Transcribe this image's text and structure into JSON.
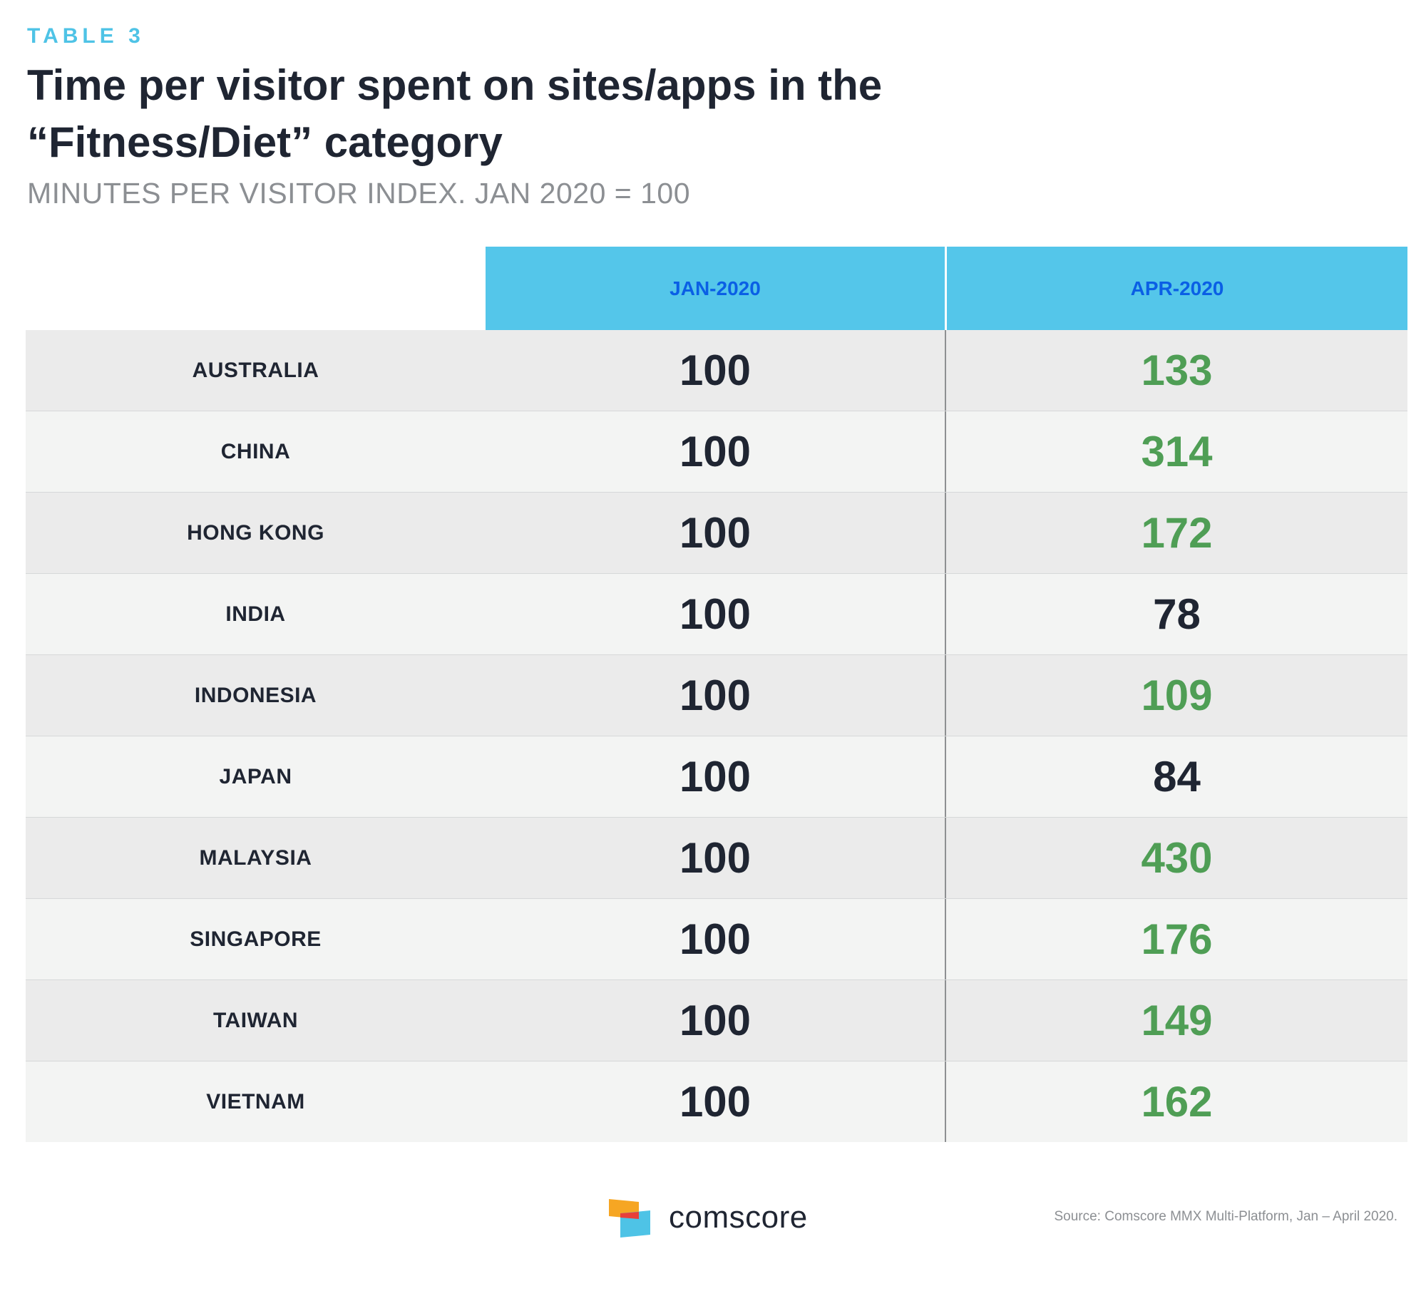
{
  "kicker": "TABLE 3",
  "title": "Time per visitor spent on sites/apps in the “Fitness/Diet” category",
  "subtitle": "MINUTES PER VISITOR INDEX. JAN 2020 = 100",
  "columns": [
    "JAN-2020",
    "APR-2020"
  ],
  "colors": {
    "header_bg": "#54c6ea",
    "header_text": "#0a5fe5",
    "increase": "#4f9e55",
    "decrease": "#1f2532",
    "kicker": "#4ec3e6"
  },
  "chart_data": {
    "type": "table",
    "title": "Time per visitor spent on sites/apps in the “Fitness/Diet” category",
    "subtitle": "MINUTES PER VISITOR INDEX. JAN 2020 = 100",
    "columns": [
      "JAN-2020",
      "APR-2020"
    ],
    "rows": [
      {
        "country": "AUSTRALIA",
        "jan": 100,
        "apr": 133
      },
      {
        "country": "CHINA",
        "jan": 100,
        "apr": 314
      },
      {
        "country": "HONG KONG",
        "jan": 100,
        "apr": 172
      },
      {
        "country": "INDIA",
        "jan": 100,
        "apr": 78
      },
      {
        "country": "INDONESIA",
        "jan": 100,
        "apr": 109
      },
      {
        "country": "JAPAN",
        "jan": 100,
        "apr": 84
      },
      {
        "country": "MALAYSIA",
        "jan": 100,
        "apr": 430
      },
      {
        "country": "SINGAPORE",
        "jan": 100,
        "apr": 176
      },
      {
        "country": "TAIWAN",
        "jan": 100,
        "apr": 149
      },
      {
        "country": "VIETNAM",
        "jan": 100,
        "apr": 162
      }
    ]
  },
  "logo": {
    "name": "comscore",
    "icon": "comscore-logo-icon"
  },
  "source": "Source: Comscore MMX Multi-Platform, Jan – April 2020."
}
